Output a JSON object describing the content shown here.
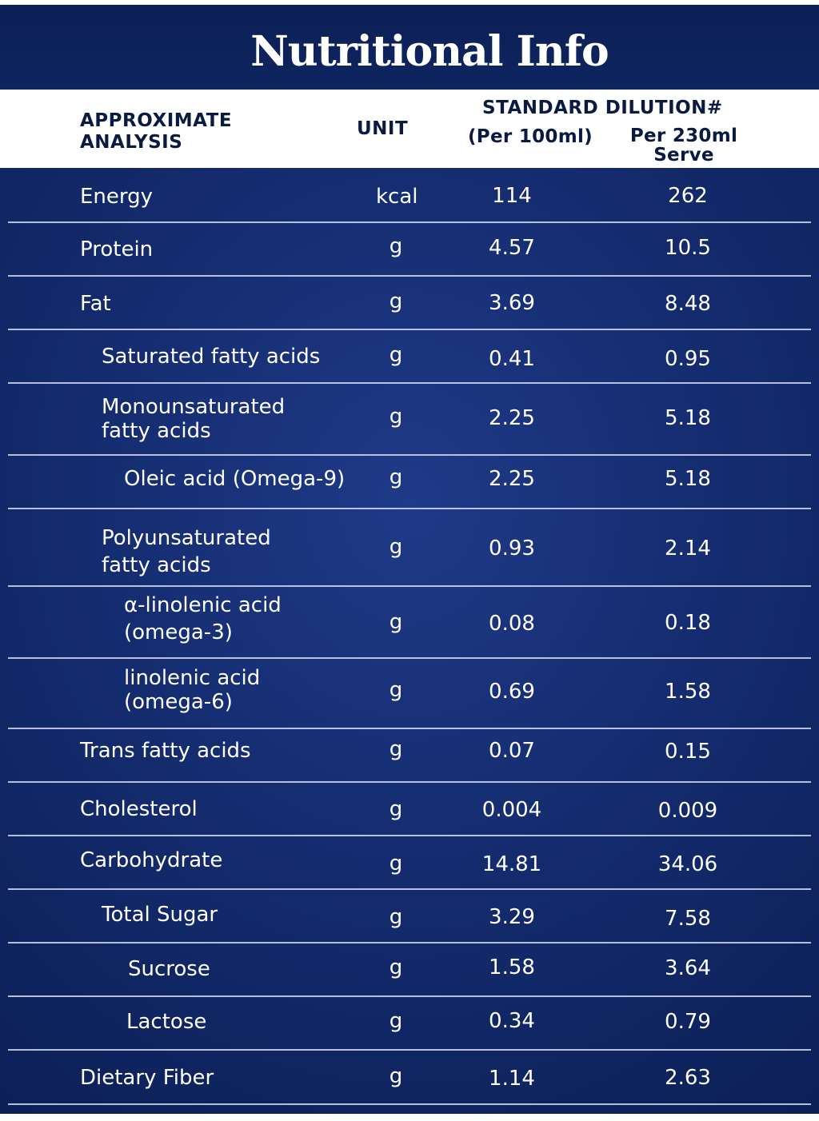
{
  "title": "Nutritional Info",
  "header": {
    "analysis": "APPROXIMATE\nANALYSIS",
    "unit": "UNIT",
    "standard_dilution": "STANDARD DILUTION#",
    "per_100ml": "(Per 100ml)",
    "per_230ml": "Per 230ml\nServe"
  },
  "colors": {
    "panel_dark": "#0b1d52",
    "panel_light": "#1f3a88",
    "text": "#ffffff",
    "header_text": "#0a1a40"
  },
  "rows": [
    {
      "label": "Energy",
      "unit": "kcal",
      "per_100ml": "114",
      "per_230ml": "262"
    },
    {
      "label": "Protein",
      "unit": "g",
      "per_100ml": "4.57",
      "per_230ml": "10.5"
    },
    {
      "label": "Fat",
      "unit": "g",
      "per_100ml": "3.69",
      "per_230ml": "8.48"
    },
    {
      "label": "Saturated fatty acids",
      "unit": "g",
      "per_100ml": "0.41",
      "per_230ml": "0.95"
    },
    {
      "label": "Monounsaturated\nfatty acids",
      "unit": "g",
      "per_100ml": "2.25",
      "per_230ml": "5.18"
    },
    {
      "label": "Oleic acid (Omega-9)",
      "unit": "g",
      "per_100ml": "2.25",
      "per_230ml": "5.18"
    },
    {
      "label": "Polyunsaturated\nfatty acids",
      "unit": "g",
      "per_100ml": "0.93",
      "per_230ml": "2.14"
    },
    {
      "label": "α-linolenic acid\n (omega-3)",
      "unit": "g",
      "per_100ml": "0.08",
      "per_230ml": "0.18"
    },
    {
      "label": "linolenic acid\n(omega-6)",
      "unit": "g",
      "per_100ml": "0.69",
      "per_230ml": "1.58"
    },
    {
      "label": "Trans fatty acids",
      "unit": "g",
      "per_100ml": "0.07",
      "per_230ml": "0.15"
    },
    {
      "label": "Cholesterol",
      "unit": "g",
      "per_100ml": "0.004",
      "per_230ml": "0.009"
    },
    {
      "label": "Carbohydrate",
      "unit": "g",
      "per_100ml": "14.81",
      "per_230ml": "34.06"
    },
    {
      "label": "Total Sugar",
      "unit": "g",
      "per_100ml": "3.29",
      "per_230ml": "7.58"
    },
    {
      "label": "Sucrose",
      "unit": "g",
      "per_100ml": "1.58",
      "per_230ml": "3.64"
    },
    {
      "label": "Lactose",
      "unit": "g",
      "per_100ml": "0.34",
      "per_230ml": "0.79"
    },
    {
      "label": "Dietary Fiber",
      "unit": "g",
      "per_100ml": "1.14",
      "per_230ml": "2.63"
    }
  ]
}
